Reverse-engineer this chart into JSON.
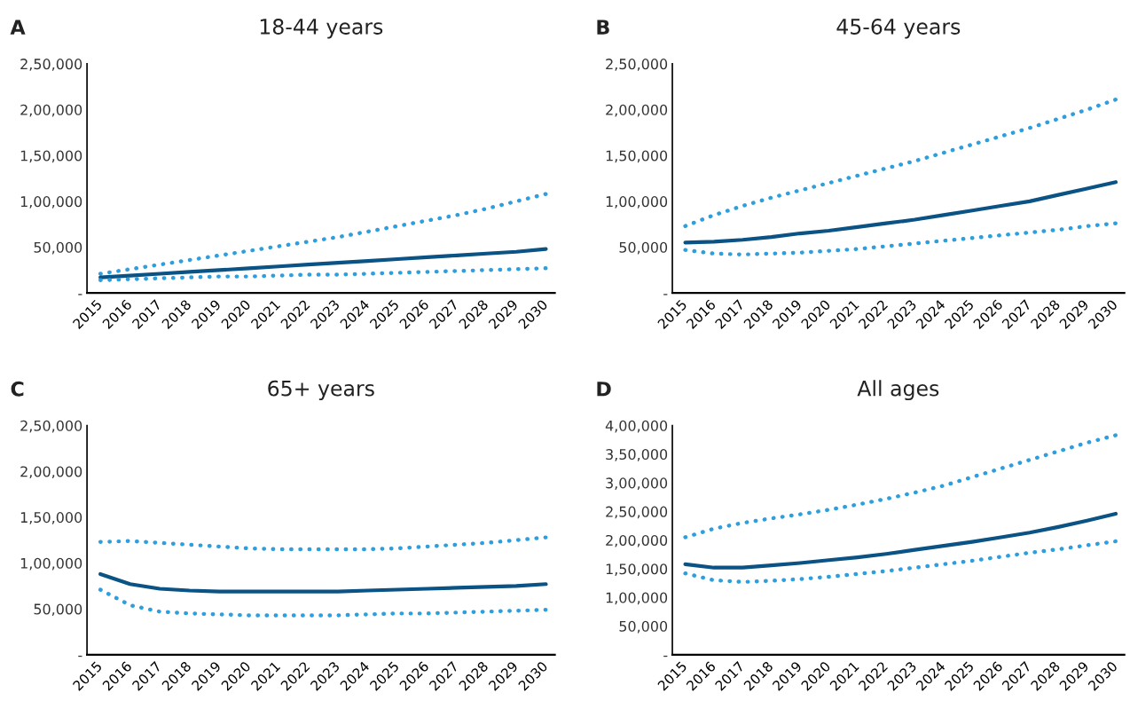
{
  "chart_data": [
    {
      "type": "line",
      "title": "18-44 years",
      "annotations": [
        "A"
      ],
      "categories": [
        "2015",
        "2016",
        "2017",
        "2018",
        "2019",
        "2020",
        "2021",
        "2022",
        "2023",
        "2024",
        "2025",
        "2026",
        "2027",
        "2028",
        "2029",
        "2030"
      ],
      "ylim": [
        0,
        250000
      ],
      "yticks": [
        {
          "value": 0,
          "label": "-"
        },
        {
          "value": 50000,
          "label": "50,000"
        },
        {
          "value": 100000,
          "label": "1,00,000"
        },
        {
          "value": 150000,
          "label": "1,50,000"
        },
        {
          "value": 200000,
          "label": "2,00,000"
        },
        {
          "value": 250000,
          "label": "2,50,000"
        }
      ],
      "grid": false,
      "legend": false,
      "marker": "none",
      "series": [
        {
          "color": "#2e9fdc",
          "line_style": "dotted",
          "values": [
            21000,
            26000,
            31000,
            36000,
            41000,
            46000,
            51000,
            56000,
            61000,
            67000,
            73000,
            79000,
            85000,
            92000,
            100000,
            108000
          ]
        },
        {
          "color": "#0b5384",
          "line_style": "solid",
          "values": [
            17000,
            19000,
            21000,
            23000,
            25000,
            27000,
            29000,
            31000,
            33000,
            35000,
            37000,
            39000,
            41000,
            43000,
            45000,
            48000
          ]
        },
        {
          "color": "#2e9fdc",
          "line_style": "dotted",
          "values": [
            14000,
            15000,
            16000,
            17000,
            18000,
            18000,
            19000,
            20000,
            20000,
            21000,
            22000,
            23000,
            24000,
            25000,
            26000,
            27000
          ]
        }
      ]
    },
    {
      "type": "line",
      "title": "45-64 years",
      "annotations": [
        "B"
      ],
      "categories": [
        "2015",
        "2016",
        "2017",
        "2018",
        "2019",
        "2020",
        "2021",
        "2022",
        "2023",
        "2024",
        "2025",
        "2026",
        "2027",
        "2028",
        "2029",
        "2030"
      ],
      "ylim": [
        0,
        250000
      ],
      "yticks": [
        {
          "value": 0,
          "label": "-"
        },
        {
          "value": 50000,
          "label": "50,000"
        },
        {
          "value": 100000,
          "label": "1,00,000"
        },
        {
          "value": 150000,
          "label": "1,50,000"
        },
        {
          "value": 200000,
          "label": "2,00,000"
        },
        {
          "value": 250000,
          "label": "2,50,000"
        }
      ],
      "grid": false,
      "legend": false,
      "marker": "none",
      "series": [
        {
          "color": "#2e9fdc",
          "line_style": "dotted",
          "values": [
            73000,
            85000,
            95000,
            104000,
            112000,
            120000,
            128000,
            136000,
            144000,
            153000,
            162000,
            171000,
            180000,
            190000,
            200000,
            211000
          ]
        },
        {
          "color": "#0b5384",
          "line_style": "solid",
          "values": [
            55000,
            56000,
            58000,
            61000,
            65000,
            68000,
            72000,
            76000,
            80000,
            85000,
            90000,
            95000,
            100000,
            107000,
            114000,
            121000
          ]
        },
        {
          "color": "#2e9fdc",
          "line_style": "dotted",
          "values": [
            47000,
            43000,
            42000,
            43000,
            44000,
            46000,
            48000,
            51000,
            54000,
            57000,
            60000,
            63000,
            66000,
            69000,
            73000,
            76000
          ]
        }
      ]
    },
    {
      "type": "line",
      "title": "65+ years",
      "annotations": [
        "C"
      ],
      "categories": [
        "2015",
        "2016",
        "2017",
        "2018",
        "2019",
        "2020",
        "2021",
        "2022",
        "2023",
        "2024",
        "2025",
        "2026",
        "2027",
        "2028",
        "2029",
        "2030"
      ],
      "ylim": [
        0,
        250000
      ],
      "yticks": [
        {
          "value": 0,
          "label": "-"
        },
        {
          "value": 50000,
          "label": "50,000"
        },
        {
          "value": 100000,
          "label": "1,00,000"
        },
        {
          "value": 150000,
          "label": "1,50,000"
        },
        {
          "value": 200000,
          "label": "2,00,000"
        },
        {
          "value": 250000,
          "label": "2,50,000"
        }
      ],
      "grid": false,
      "legend": false,
      "marker": "none",
      "series": [
        {
          "color": "#2e9fdc",
          "line_style": "dotted",
          "values": [
            123000,
            124000,
            122000,
            120000,
            118000,
            116000,
            115000,
            115000,
            115000,
            115000,
            116000,
            118000,
            120000,
            122000,
            125000,
            128000
          ]
        },
        {
          "color": "#0b5384",
          "line_style": "solid",
          "values": [
            88000,
            77000,
            72000,
            70000,
            69000,
            69000,
            69000,
            69000,
            69000,
            70000,
            71000,
            72000,
            73000,
            74000,
            75000,
            77000
          ]
        },
        {
          "color": "#2e9fdc",
          "line_style": "dotted",
          "values": [
            71000,
            54000,
            47000,
            45000,
            44000,
            43000,
            43000,
            43000,
            43000,
            44000,
            45000,
            45000,
            46000,
            47000,
            48000,
            49000
          ]
        }
      ]
    },
    {
      "type": "line",
      "title": "All ages",
      "annotations": [
        "D"
      ],
      "categories": [
        "2015",
        "2016",
        "2017",
        "2018",
        "2019",
        "2020",
        "2021",
        "2022",
        "2023",
        "2024",
        "2025",
        "2026",
        "2027",
        "2028",
        "2029",
        "2030"
      ],
      "ylim": [
        0,
        400000
      ],
      "yticks": [
        {
          "value": 0,
          "label": "-"
        },
        {
          "value": 50000,
          "label": "50,000"
        },
        {
          "value": 100000,
          "label": "1,00,000"
        },
        {
          "value": 150000,
          "label": "1,50,000"
        },
        {
          "value": 200000,
          "label": "2,00,000"
        },
        {
          "value": 250000,
          "label": "2,50,000"
        },
        {
          "value": 300000,
          "label": "3,00,000"
        },
        {
          "value": 350000,
          "label": "3,50,000"
        },
        {
          "value": 400000,
          "label": "4,00,000"
        }
      ],
      "grid": false,
      "legend": false,
      "marker": "none",
      "series": [
        {
          "color": "#2e9fdc",
          "line_style": "dotted",
          "values": [
            205000,
            220000,
            230000,
            238000,
            245000,
            253000,
            262000,
            272000,
            283000,
            295000,
            310000,
            325000,
            340000,
            355000,
            370000,
            383000
          ]
        },
        {
          "color": "#0b5384",
          "line_style": "solid",
          "values": [
            158000,
            152000,
            152000,
            156000,
            160000,
            165000,
            170000,
            176000,
            183000,
            190000,
            197000,
            205000,
            213000,
            223000,
            234000,
            246000
          ]
        },
        {
          "color": "#2e9fdc",
          "line_style": "dotted",
          "values": [
            142000,
            130000,
            127000,
            129000,
            132000,
            136000,
            141000,
            146000,
            152000,
            158000,
            164000,
            171000,
            178000,
            184000,
            191000,
            198000
          ]
        }
      ]
    }
  ]
}
